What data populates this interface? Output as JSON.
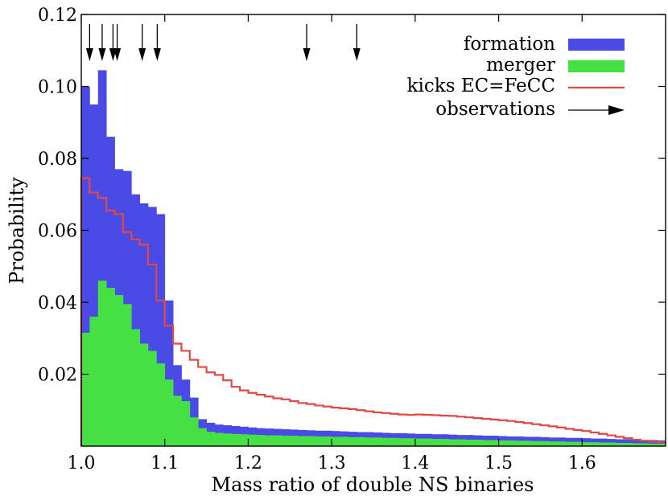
{
  "chart_data": {
    "type": "histogram",
    "xlabel": "Mass ratio of double NS binaries",
    "ylabel": "Probability",
    "xlim": [
      1.0,
      1.7
    ],
    "ylim": [
      0.0,
      0.12
    ],
    "x_ticks": [
      1.0,
      1.1,
      1.2,
      1.3,
      1.4,
      1.5,
      1.6
    ],
    "x_tick_labels": [
      "1.0",
      "1.1",
      "1.2",
      "1.3",
      "1.4",
      "1.5",
      "1.6"
    ],
    "y_ticks": [
      0.02,
      0.04,
      0.06,
      0.08,
      0.1,
      0.12
    ],
    "y_tick_labels": [
      "0.02",
      "0.04",
      "0.06",
      "0.08",
      "0.10",
      "0.12"
    ],
    "bin_start": 1.0,
    "bin_width": 0.01,
    "legend_position": "top-right",
    "series": [
      {
        "name": "formation",
        "style": "filled",
        "color": "#4a4ae6",
        "values": [
          0.1,
          0.095,
          0.1045,
          0.086,
          0.077,
          0.0765,
          0.07,
          0.0675,
          0.0665,
          0.0645,
          0.0405,
          0.0225,
          0.0185,
          0.0135,
          0.0075,
          0.0065,
          0.006,
          0.0058,
          0.0056,
          0.0054,
          0.0052,
          0.005,
          0.0049,
          0.0048,
          0.0047,
          0.0046,
          0.0045,
          0.0044,
          0.0043,
          0.0043,
          0.0042,
          0.0041,
          0.004,
          0.0039,
          0.0039,
          0.0038,
          0.0037,
          0.0036,
          0.0036,
          0.0035,
          0.0034,
          0.0034,
          0.0033,
          0.0033,
          0.0032,
          0.0031,
          0.0031,
          0.003,
          0.0029,
          0.0029,
          0.0028,
          0.0027,
          0.0027,
          0.0026,
          0.0026,
          0.0025,
          0.0024,
          0.0024,
          0.0023,
          0.0023,
          0.0022,
          0.0021,
          0.0021,
          0.002,
          0.0019,
          0.0019,
          0.0018,
          0.0017,
          0.0017,
          0.0016
        ]
      },
      {
        "name": "merger",
        "style": "filled",
        "color": "#44e044",
        "values": [
          0.0315,
          0.036,
          0.046,
          0.044,
          0.042,
          0.0395,
          0.0325,
          0.0285,
          0.0265,
          0.023,
          0.0185,
          0.014,
          0.0125,
          0.008,
          0.005,
          0.004,
          0.0037,
          0.0035,
          0.0034,
          0.0033,
          0.0032,
          0.0031,
          0.003,
          0.003,
          0.0029,
          0.0029,
          0.0028,
          0.0028,
          0.0027,
          0.0027,
          0.0026,
          0.0026,
          0.0025,
          0.0025,
          0.0024,
          0.0024,
          0.0023,
          0.0023,
          0.0022,
          0.0022,
          0.0021,
          0.0021,
          0.002,
          0.002,
          0.0019,
          0.0019,
          0.0018,
          0.0018,
          0.0017,
          0.0017,
          0.0016,
          0.0016,
          0.0015,
          0.0015,
          0.0014,
          0.0014,
          0.0013,
          0.0013,
          0.0012,
          0.0012,
          0.0011,
          0.0011,
          0.001,
          0.001,
          0.0009,
          0.0009,
          0.0008,
          0.0008,
          0.0007,
          0.0007
        ]
      },
      {
        "name": "kicks EC=FeCC",
        "style": "step-line",
        "color": "#e04848",
        "values": [
          0.0745,
          0.0705,
          0.069,
          0.0655,
          0.0645,
          0.0595,
          0.0575,
          0.056,
          0.0505,
          0.0405,
          0.0335,
          0.0285,
          0.0265,
          0.024,
          0.022,
          0.0205,
          0.0198,
          0.0183,
          0.0165,
          0.0155,
          0.0148,
          0.0143,
          0.0138,
          0.0133,
          0.013,
          0.0125,
          0.012,
          0.0117,
          0.0113,
          0.011,
          0.0107,
          0.0105,
          0.0103,
          0.01,
          0.0097,
          0.0094,
          0.0092,
          0.009,
          0.0088,
          0.0087,
          0.0088,
          0.0087,
          0.0086,
          0.0085,
          0.0084,
          0.0082,
          0.008,
          0.0078,
          0.0076,
          0.0074,
          0.0072,
          0.007,
          0.0067,
          0.0064,
          0.0061,
          0.0058,
          0.0055,
          0.0052,
          0.0048,
          0.0045,
          0.0042,
          0.0038,
          0.0034,
          0.003,
          0.0026,
          0.0022,
          0.0018,
          0.0015,
          0.0012,
          0.0011
        ]
      },
      {
        "name": "observations",
        "style": "arrow-markers",
        "color": "#000000",
        "values": [
          1.01,
          1.025,
          1.038,
          1.043,
          1.073,
          1.091,
          1.27,
          1.33
        ]
      }
    ]
  }
}
